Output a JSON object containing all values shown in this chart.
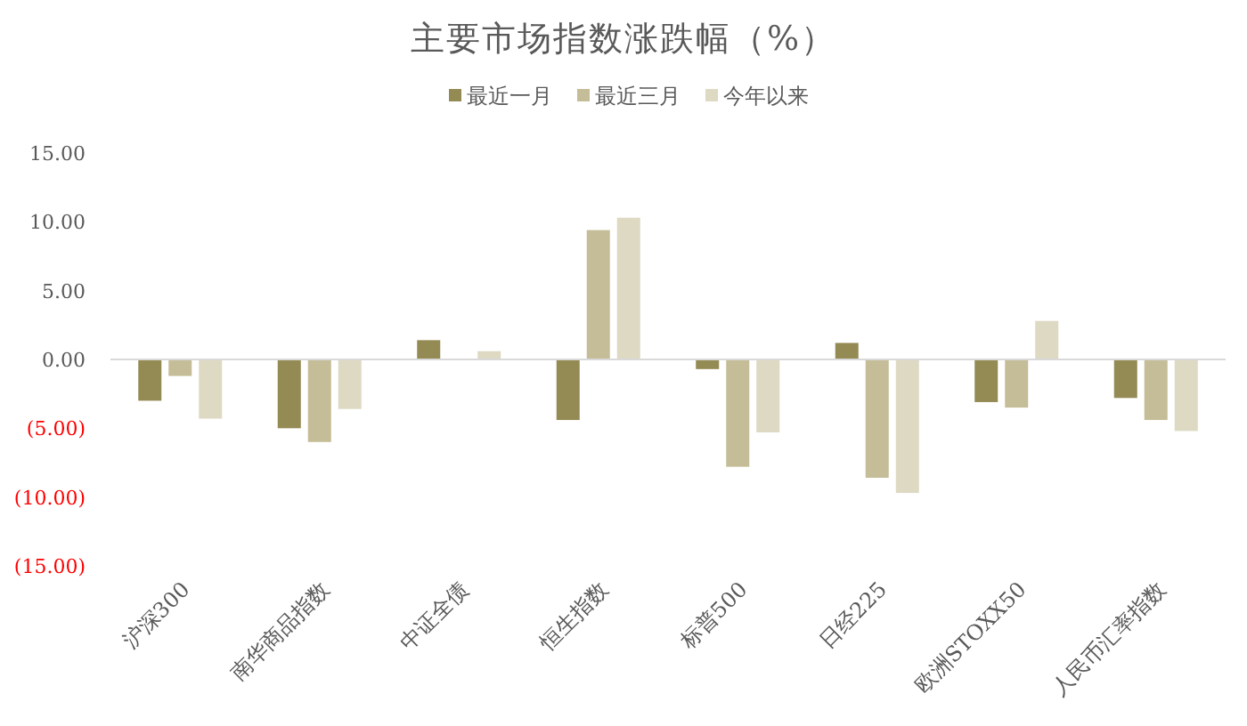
{
  "chart_data": {
    "type": "bar",
    "title": "主要市场指数涨跌幅（%）",
    "categories": [
      "沪深300",
      "南华商品指数",
      "中证全债",
      "恒生指数",
      "标普500",
      "日经225",
      "欧洲STOXX50",
      "人民币汇率指数"
    ],
    "series": [
      {
        "name": "最近一月",
        "color": "#948a54",
        "values": [
          -3.0,
          -5.0,
          1.4,
          -4.4,
          -0.7,
          1.2,
          -3.1,
          -2.8
        ]
      },
      {
        "name": "最近三月",
        "color": "#c4bd97",
        "values": [
          -1.2,
          -6.0,
          0,
          9.4,
          -7.8,
          -8.6,
          -3.5,
          -4.4
        ]
      },
      {
        "name": "今年以来",
        "color": "#ddd9c3",
        "values": [
          -4.3,
          -3.6,
          0.6,
          10.3,
          -5.3,
          -9.7,
          2.8,
          -5.2
        ]
      }
    ],
    "ylim": [
      -15,
      15
    ],
    "yticks": [
      {
        "value": -15,
        "label": "(15.00)"
      },
      {
        "value": -10,
        "label": "(10.00)"
      },
      {
        "value": -5,
        "label": "(5.00)"
      },
      {
        "value": 0,
        "label": "0.00"
      },
      {
        "value": 5,
        "label": "5.00"
      },
      {
        "value": 10,
        "label": "10.00"
      },
      {
        "value": 15,
        "label": "15.00"
      }
    ],
    "legend": "top"
  }
}
